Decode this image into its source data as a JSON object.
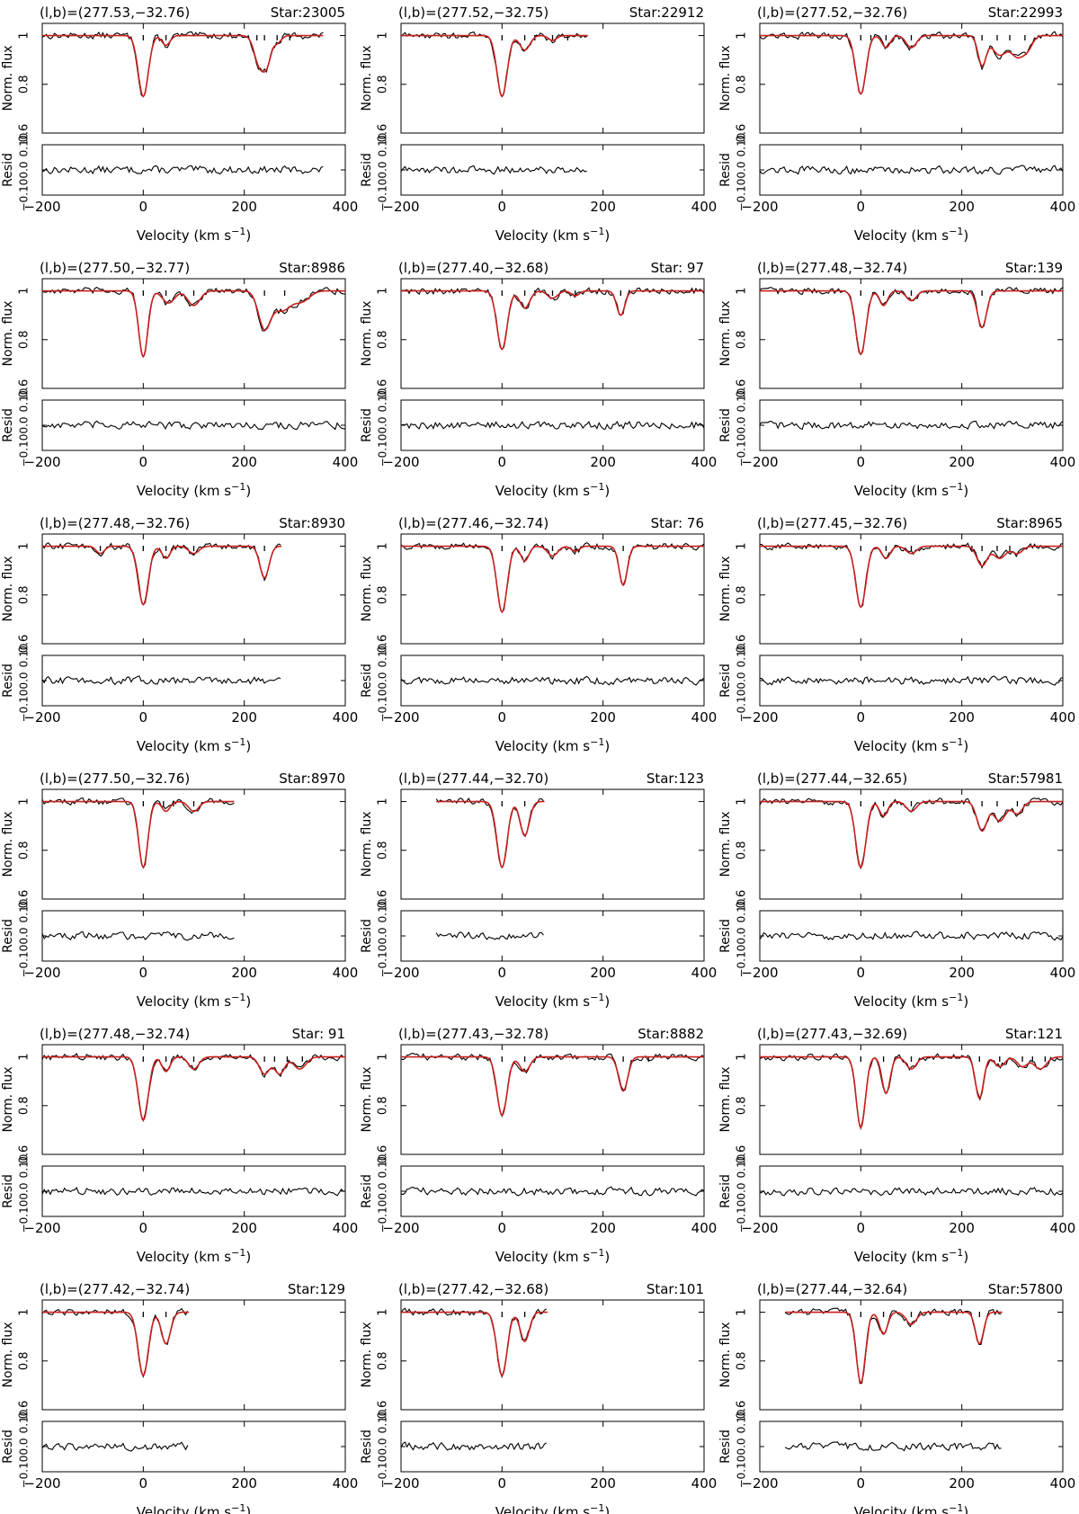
{
  "figure": {
    "colors": {
      "data": "#000000",
      "model": "#c8201e"
    },
    "shared_axes": {
      "x_label": "Velocity (km s",
      "x_label_exponent": "−1",
      "x_label_close": ")",
      "x_ticks": [
        "−200",
        "0",
        "200",
        "400"
      ],
      "x_tick_values": [
        -200,
        0,
        200,
        400
      ],
      "x_range": [
        -200,
        400
      ],
      "flux_label": "Norm. flux",
      "flux_ticks": [
        "1",
        "0.8",
        "0.6"
      ],
      "flux_tick_values": [
        1.0,
        0.8,
        0.6
      ],
      "flux_range": [
        0.6,
        1.05
      ],
      "resid_label": "Resid",
      "resid_ticks": [
        "0.10",
        "0.0",
        "−0.10"
      ],
      "resid_tick_values": [
        0.1,
        0.0,
        -0.1
      ],
      "resid_range": [
        -0.1,
        0.1
      ]
    }
  },
  "chart_data": [
    {
      "type": "line",
      "title": "(l,b)=(277.53,−32.76)",
      "star": "Star:23005",
      "x_range": [
        -200,
        357
      ],
      "components": [
        {
          "v": 0,
          "depth": 0.25,
          "w": 10
        },
        {
          "v": 45,
          "depth": 0.04,
          "w": 8
        },
        {
          "v": 230,
          "depth": 0.12,
          "w": 10
        },
        {
          "v": 245,
          "depth": 0.1,
          "w": 8
        },
        {
          "v": 265,
          "depth": 0.03,
          "w": 8
        }
      ],
      "ticks": [
        0,
        45,
        225,
        240,
        265,
        290
      ]
    },
    {
      "type": "line",
      "title": "(l,b)=(277.52,−32.75)",
      "star": "Star:22912",
      "x_range": [
        -200,
        170
      ],
      "components": [
        {
          "v": 0,
          "depth": 0.25,
          "w": 10
        },
        {
          "v": 45,
          "depth": 0.06,
          "w": 10
        },
        {
          "v": 100,
          "depth": 0.02,
          "w": 8
        }
      ],
      "ticks": [
        0,
        45,
        65,
        100,
        130
      ]
    },
    {
      "type": "line",
      "title": "(l,b)=(277.52,−32.76)",
      "star": "Star:22993",
      "x_range": [
        -200,
        400
      ],
      "components": [
        {
          "v": 0,
          "depth": 0.24,
          "w": 10
        },
        {
          "v": 50,
          "depth": 0.05,
          "w": 8
        },
        {
          "v": 100,
          "depth": 0.05,
          "w": 10
        },
        {
          "v": 240,
          "depth": 0.12,
          "w": 8
        },
        {
          "v": 275,
          "depth": 0.08,
          "w": 15
        },
        {
          "v": 310,
          "depth": 0.08,
          "w": 12
        },
        {
          "v": 330,
          "depth": 0.05,
          "w": 10
        }
      ],
      "ticks": [
        0,
        20,
        50,
        100,
        240,
        270,
        295,
        325
      ]
    },
    {
      "type": "line",
      "title": "(l,b)=(277.50,−32.77)",
      "star": "Star:8986",
      "x_range": [
        -200,
        400
      ],
      "components": [
        {
          "v": 0,
          "depth": 0.27,
          "w": 9
        },
        {
          "v": 50,
          "depth": 0.05,
          "w": 12
        },
        {
          "v": 100,
          "depth": 0.06,
          "w": 12
        },
        {
          "v": 240,
          "depth": 0.15,
          "w": 12
        },
        {
          "v": 275,
          "depth": 0.08,
          "w": 18
        },
        {
          "v": 315,
          "depth": 0.04,
          "w": 15
        }
      ],
      "ticks": [
        0,
        45,
        100,
        240,
        280
      ]
    },
    {
      "type": "line",
      "title": "(l,b)=(277.40,−32.68)",
      "star": "Star: 97",
      "x_range": [
        -200,
        400
      ],
      "components": [
        {
          "v": 0,
          "depth": 0.24,
          "w": 10
        },
        {
          "v": 45,
          "depth": 0.07,
          "w": 10
        },
        {
          "v": 100,
          "depth": 0.03,
          "w": 10
        },
        {
          "v": 145,
          "depth": 0.02,
          "w": 8
        },
        {
          "v": 235,
          "depth": 0.1,
          "w": 8
        }
      ],
      "ticks": [
        0,
        45,
        65,
        100,
        145,
        235
      ]
    },
    {
      "type": "line",
      "title": "(l,b)=(277.48,−32.74)",
      "star": "Star:139",
      "x_range": [
        -200,
        400
      ],
      "components": [
        {
          "v": 0,
          "depth": 0.26,
          "w": 10
        },
        {
          "v": 45,
          "depth": 0.06,
          "w": 8
        },
        {
          "v": 100,
          "depth": 0.04,
          "w": 10
        },
        {
          "v": 240,
          "depth": 0.15,
          "w": 9
        }
      ],
      "ticks": [
        0,
        45,
        100,
        240
      ]
    },
    {
      "type": "line",
      "title": "(l,b)=(277.48,−32.76)",
      "star": "Star:8930",
      "x_range": [
        -200,
        275
      ],
      "components": [
        {
          "v": -85,
          "depth": 0.03,
          "w": 8
        },
        {
          "v": 0,
          "depth": 0.24,
          "w": 10
        },
        {
          "v": 45,
          "depth": 0.05,
          "w": 8
        },
        {
          "v": 100,
          "depth": 0.03,
          "w": 10
        },
        {
          "v": 240,
          "depth": 0.13,
          "w": 9
        }
      ],
      "ticks": [
        -85,
        0,
        45,
        100,
        240
      ]
    },
    {
      "type": "line",
      "title": "(l,b)=(277.46,−32.74)",
      "star": "Star: 76",
      "x_range": [
        -200,
        400
      ],
      "components": [
        {
          "v": 0,
          "depth": 0.27,
          "w": 10
        },
        {
          "v": 45,
          "depth": 0.06,
          "w": 8
        },
        {
          "v": 100,
          "depth": 0.04,
          "w": 10
        },
        {
          "v": 145,
          "depth": 0.02,
          "w": 8
        },
        {
          "v": 240,
          "depth": 0.16,
          "w": 8
        }
      ],
      "ticks": [
        0,
        45,
        100,
        145,
        240
      ]
    },
    {
      "type": "line",
      "title": "(l,b)=(277.45,−32.76)",
      "star": "Star:8965",
      "x_range": [
        -200,
        400
      ],
      "components": [
        {
          "v": 0,
          "depth": 0.25,
          "w": 10
        },
        {
          "v": 50,
          "depth": 0.05,
          "w": 8
        },
        {
          "v": 100,
          "depth": 0.03,
          "w": 10
        },
        {
          "v": 240,
          "depth": 0.08,
          "w": 10
        },
        {
          "v": 275,
          "depth": 0.05,
          "w": 12
        },
        {
          "v": 310,
          "depth": 0.03,
          "w": 10
        }
      ],
      "ticks": [
        0,
        50,
        100,
        220,
        240,
        270,
        295
      ]
    },
    {
      "type": "line",
      "title": "(l,b)=(277.50,−32.76)",
      "star": "Star:8970",
      "x_range": [
        -200,
        180
      ],
      "components": [
        {
          "v": 0,
          "depth": 0.27,
          "w": 9
        },
        {
          "v": 45,
          "depth": 0.04,
          "w": 8
        },
        {
          "v": 100,
          "depth": 0.04,
          "w": 10
        }
      ],
      "ticks": [
        0,
        40,
        60,
        100
      ]
    },
    {
      "type": "line",
      "title": "(l,b)=(277.44,−32.70)",
      "star": "Star:123",
      "x_range": [
        -130,
        85
      ],
      "components": [
        {
          "v": 0,
          "depth": 0.27,
          "w": 10
        },
        {
          "v": 45,
          "depth": 0.14,
          "w": 9
        }
      ],
      "ticks": [
        0,
        45
      ]
    },
    {
      "type": "line",
      "title": "(l,b)=(277.44,−32.65)",
      "star": "Star:57981",
      "x_range": [
        -200,
        400
      ],
      "components": [
        {
          "v": 0,
          "depth": 0.27,
          "w": 10
        },
        {
          "v": 45,
          "depth": 0.06,
          "w": 8
        },
        {
          "v": 100,
          "depth": 0.04,
          "w": 10
        },
        {
          "v": 240,
          "depth": 0.12,
          "w": 10
        },
        {
          "v": 275,
          "depth": 0.08,
          "w": 12
        },
        {
          "v": 310,
          "depth": 0.05,
          "w": 10
        }
      ],
      "ticks": [
        0,
        45,
        100,
        240,
        270,
        310
      ]
    },
    {
      "type": "line",
      "title": "(l,b)=(277.48,−32.74)",
      "star": "Star: 91",
      "x_range": [
        -200,
        400
      ],
      "components": [
        {
          "v": 0,
          "depth": 0.26,
          "w": 10
        },
        {
          "v": 45,
          "depth": 0.06,
          "w": 8
        },
        {
          "v": 100,
          "depth": 0.05,
          "w": 10
        },
        {
          "v": 240,
          "depth": 0.07,
          "w": 10
        },
        {
          "v": 270,
          "depth": 0.07,
          "w": 10
        },
        {
          "v": 310,
          "depth": 0.05,
          "w": 12
        }
      ],
      "ticks": [
        0,
        45,
        100,
        240,
        260,
        285,
        315
      ]
    },
    {
      "type": "line",
      "title": "(l,b)=(277.43,−32.78)",
      "star": "Star:8882",
      "x_range": [
        -200,
        400
      ],
      "components": [
        {
          "v": 0,
          "depth": 0.24,
          "w": 10
        },
        {
          "v": 45,
          "depth": 0.06,
          "w": 10
        },
        {
          "v": 240,
          "depth": 0.14,
          "w": 9
        }
      ],
      "ticks": [
        0,
        45,
        240,
        290
      ]
    },
    {
      "type": "line",
      "title": "(l,b)=(277.43,−32.69)",
      "star": "Star:121",
      "x_range": [
        -200,
        400
      ],
      "components": [
        {
          "v": 0,
          "depth": 0.29,
          "w": 9
        },
        {
          "v": 50,
          "depth": 0.15,
          "w": 8
        },
        {
          "v": 100,
          "depth": 0.05,
          "w": 10
        },
        {
          "v": 235,
          "depth": 0.17,
          "w": 8
        },
        {
          "v": 275,
          "depth": 0.04,
          "w": 10
        },
        {
          "v": 320,
          "depth": 0.04,
          "w": 10
        },
        {
          "v": 355,
          "depth": 0.05,
          "w": 12
        }
      ],
      "ticks": [
        0,
        45,
        100,
        235,
        275,
        320,
        340,
        365
      ]
    },
    {
      "type": "line",
      "title": "(l,b)=(277.42,−32.74)",
      "star": "Star:129",
      "x_range": [
        -200,
        90
      ],
      "components": [
        {
          "v": 0,
          "depth": 0.26,
          "w": 10
        },
        {
          "v": 45,
          "depth": 0.13,
          "w": 9
        }
      ],
      "ticks": [
        0,
        45
      ]
    },
    {
      "type": "line",
      "title": "(l,b)=(277.42,−32.68)",
      "star": "Star:101",
      "x_range": [
        -200,
        90
      ],
      "components": [
        {
          "v": 0,
          "depth": 0.26,
          "w": 10
        },
        {
          "v": 45,
          "depth": 0.12,
          "w": 9
        }
      ],
      "ticks": [
        0,
        45
      ]
    },
    {
      "type": "line",
      "title": "(l,b)=(277.44,−32.64)",
      "star": "Star:57800",
      "x_range": [
        -150,
        280
      ],
      "components": [
        {
          "v": 0,
          "depth": 0.29,
          "w": 9
        },
        {
          "v": 45,
          "depth": 0.09,
          "w": 8
        },
        {
          "v": 100,
          "depth": 0.05,
          "w": 10
        },
        {
          "v": 235,
          "depth": 0.13,
          "w": 8
        }
      ],
      "ticks": [
        0,
        45,
        100,
        235
      ]
    }
  ]
}
